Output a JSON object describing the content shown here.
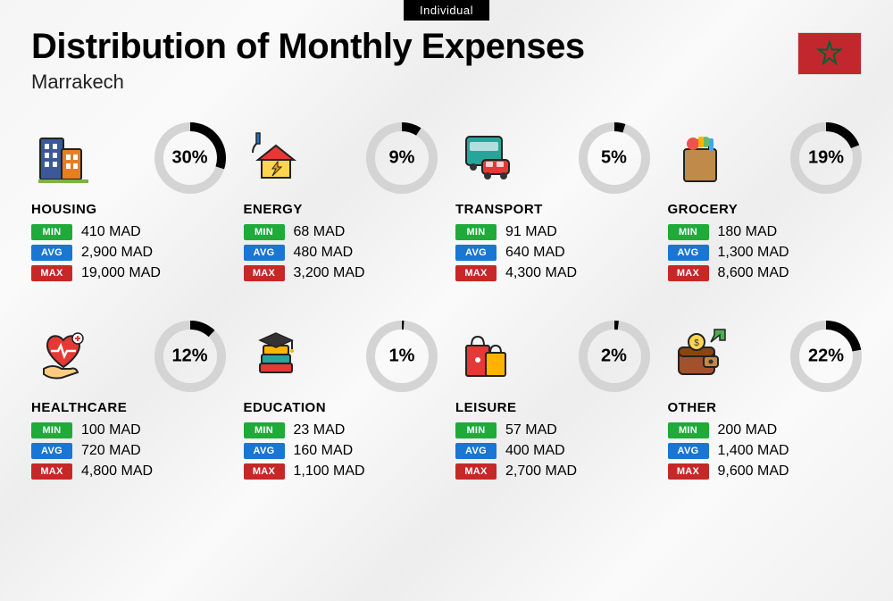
{
  "top_tag": "Individual",
  "title": "Distribution of Monthly Expenses",
  "subtitle": "Marrakech",
  "flag": {
    "bg": "#c1272d",
    "star": "#006233"
  },
  "currency": "MAD",
  "labels": {
    "min": "MIN",
    "avg": "AVG",
    "max": "MAX"
  },
  "colors": {
    "tag_min": "#1faa3a",
    "tag_avg": "#1976d2",
    "tag_max": "#c62828",
    "donut_track": "#d4d4d4",
    "donut_fill": "#000000",
    "text": "#000000"
  },
  "donut": {
    "size": 80,
    "stroke": 10
  },
  "categories": [
    {
      "key": "housing",
      "name": "HOUSING",
      "pct": 30,
      "min": "410",
      "avg": "2,900",
      "max": "19,000",
      "icon": "buildings"
    },
    {
      "key": "energy",
      "name": "ENERGY",
      "pct": 9,
      "min": "68",
      "avg": "480",
      "max": "3,200",
      "icon": "energy-house"
    },
    {
      "key": "transport",
      "name": "TRANSPORT",
      "pct": 5,
      "min": "91",
      "avg": "640",
      "max": "4,300",
      "icon": "bus-car"
    },
    {
      "key": "grocery",
      "name": "GROCERY",
      "pct": 19,
      "min": "180",
      "avg": "1,300",
      "max": "8,600",
      "icon": "grocery-bag"
    },
    {
      "key": "healthcare",
      "name": "HEALTHCARE",
      "pct": 12,
      "min": "100",
      "avg": "720",
      "max": "4,800",
      "icon": "heart-hand"
    },
    {
      "key": "education",
      "name": "EDUCATION",
      "pct": 1,
      "min": "23",
      "avg": "160",
      "max": "1,100",
      "icon": "books-cap"
    },
    {
      "key": "leisure",
      "name": "LEISURE",
      "pct": 2,
      "min": "57",
      "avg": "400",
      "max": "2,700",
      "icon": "shopping-bags"
    },
    {
      "key": "other",
      "name": "OTHER",
      "pct": 22,
      "min": "200",
      "avg": "1,400",
      "max": "9,600",
      "icon": "wallet-arrow"
    }
  ]
}
